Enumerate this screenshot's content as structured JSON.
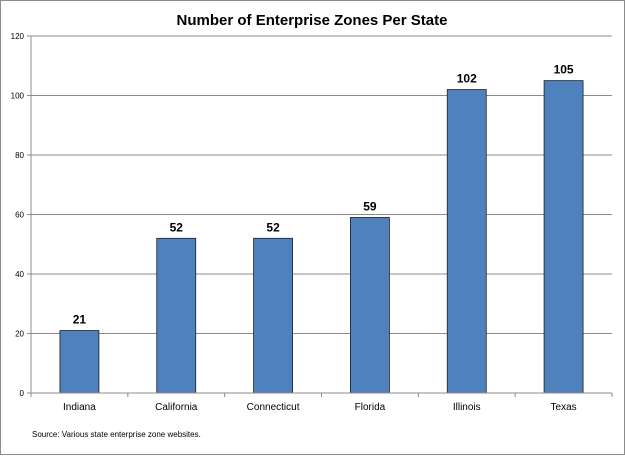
{
  "chart_data": {
    "type": "bar",
    "title": "Number of Enterprise Zones Per State",
    "xlabel": "",
    "ylabel": "",
    "categories": [
      "Indiana",
      "California",
      "Connecticut",
      "Florida",
      "Illinois",
      "Texas"
    ],
    "values": [
      21,
      52,
      52,
      59,
      102,
      105
    ],
    "data_labels": [
      "21",
      "52",
      "52",
      "59",
      "102",
      "105"
    ],
    "ylim": [
      0,
      120
    ],
    "yticks": [
      0,
      20,
      40,
      60,
      80,
      100,
      120
    ],
    "grid": true,
    "legend": "none",
    "bar_color": "#4f81bd",
    "bar_edge_color": "#1f1f1f",
    "source_note": "Source: Various state enterprise zone websites."
  }
}
